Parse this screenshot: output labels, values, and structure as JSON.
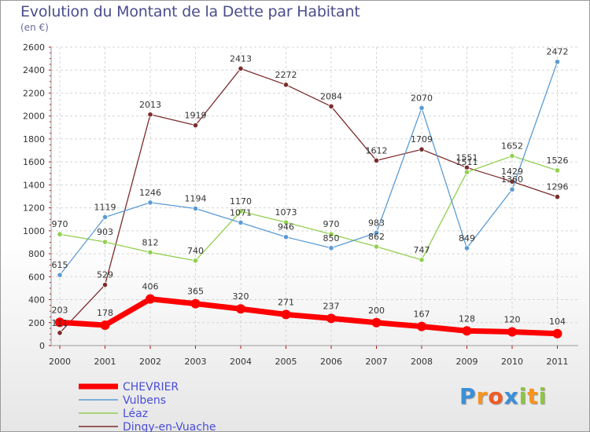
{
  "chart_data": {
    "type": "line",
    "title": "Evolution du Montant de la Dette par Habitant",
    "subtitle": "(en €)",
    "x": [
      "2000",
      "2001",
      "2002",
      "2003",
      "2004",
      "2005",
      "2006",
      "2007",
      "2008",
      "2009",
      "2010",
      "2011"
    ],
    "ylim": [
      0,
      2600
    ],
    "yticks": [
      0,
      200,
      400,
      600,
      800,
      1000,
      1200,
      1400,
      1600,
      1800,
      2000,
      2200,
      2400,
      2600
    ],
    "grid": true,
    "legend_position": "bottom-left",
    "series": [
      {
        "name": "CHEVRIER",
        "color": "#ff0000",
        "values": [
          203,
          178,
          406,
          365,
          320,
          271,
          237,
          200,
          167,
          128,
          120,
          104
        ]
      },
      {
        "name": "Vulbens",
        "color": "#5b9bd5",
        "values": [
          615,
          1119,
          1246,
          1194,
          1071,
          946,
          850,
          983,
          2070,
          849,
          1360,
          2472
        ]
      },
      {
        "name": "Léaz",
        "color": "#92d050",
        "values": [
          970,
          903,
          812,
          740,
          1170,
          1073,
          970,
          862,
          747,
          1511,
          1652,
          1526
        ]
      },
      {
        "name": "Dingy-en-Vuache",
        "color": "#7b2c2c",
        "values": [
          111,
          529,
          2013,
          1919,
          2413,
          2272,
          2084,
          1612,
          1709,
          1551,
          1429,
          1296
        ]
      }
    ]
  },
  "logo": {
    "letters": [
      "P",
      "r",
      "o",
      "x",
      "i",
      "t",
      "i"
    ],
    "colors": [
      "#3a8fd8",
      "#f7941d",
      "#f15a24",
      "#3a8fd8",
      "#8dc63f",
      "#f7941d",
      "#8dc63f"
    ]
  }
}
